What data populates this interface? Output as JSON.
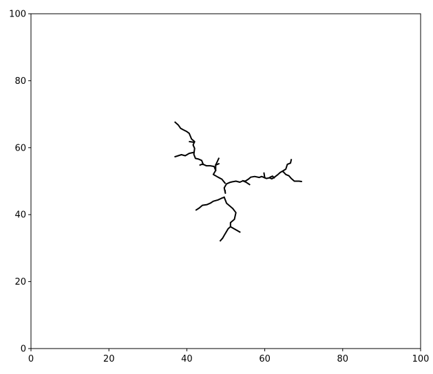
{
  "chart_data": {
    "type": "line",
    "title": "",
    "xlabel": "",
    "ylabel": "",
    "xlim": [
      0,
      100
    ],
    "ylim": [
      0,
      100
    ],
    "x_ticks": [
      0,
      20,
      40,
      60,
      80,
      100
    ],
    "y_ticks": [
      0,
      20,
      40,
      60,
      80,
      100
    ],
    "x_tick_labels": [
      "0",
      "20",
      "40",
      "60",
      "80",
      "100"
    ],
    "y_tick_labels": [
      "0",
      "20",
      "40",
      "60",
      "80",
      "100"
    ],
    "grid": false,
    "line_color": "#000000",
    "series": [
      {
        "x": [
          49.8,
          49.9,
          49.6,
          50.2,
          51.0,
          51.6,
          52.6,
          53.6,
          54.4,
          55.0,
          55.8,
          56.4,
          57.4,
          58.6,
          59.2,
          59.8,
          60.4,
          61.2,
          61.8,
          62.4,
          63.2,
          64.0,
          64.6,
          65.4,
          66.2,
          66.8,
          67.6,
          68.8,
          69.4
        ],
        "y": [
          47.2,
          46.4,
          48.0,
          49.2,
          49.6,
          49.8,
          50.0,
          49.7,
          50.1,
          50.0,
          50.6,
          51.2,
          51.4,
          51.1,
          51.4,
          51.1,
          50.8,
          51.0,
          50.7,
          51.1,
          51.8,
          52.6,
          53.0,
          52.0,
          51.6,
          50.8,
          50.0,
          50.0,
          49.9
        ]
      },
      {
        "x": [
          54.4,
          55.3,
          56.1
        ],
        "y": [
          50.1,
          49.6,
          49.0
        ]
      },
      {
        "x": [
          60.0,
          59.8
        ],
        "y": [
          51.0,
          52.4
        ]
      },
      {
        "x": [
          61.4,
          62.0,
          62.4
        ],
        "y": [
          51.2,
          51.5,
          51.0
        ]
      },
      {
        "x": [
          64.6,
          65.4,
          65.8,
          66.6,
          66.8
        ],
        "y": [
          53.0,
          53.6,
          55.0,
          55.4,
          56.4
        ]
      },
      {
        "x": [
          49.8,
          49.0,
          48.0,
          47.4,
          46.8,
          47.4,
          47.0,
          46.0,
          45.0,
          44.2,
          43.8,
          43.0,
          42.2,
          41.8,
          42.0,
          41.6,
          42.0,
          41.2,
          40.6,
          40.0,
          39.0,
          38.4,
          37.8,
          37.0
        ],
        "y": [
          49.4,
          50.6,
          51.2,
          51.6,
          52.0,
          53.2,
          54.4,
          54.6,
          54.6,
          55.0,
          56.2,
          56.6,
          56.8,
          58.0,
          59.8,
          60.8,
          61.8,
          62.6,
          64.3,
          64.8,
          65.4,
          65.8,
          66.8,
          67.6
        ]
      },
      {
        "x": [
          47.4,
          47.4,
          48.2
        ],
        "y": [
          53.2,
          54.8,
          56.8
        ]
      },
      {
        "x": [
          47.4,
          48.2
        ],
        "y": [
          54.8,
          55.2
        ]
      },
      {
        "x": [
          44.2,
          43.8,
          43.4
        ],
        "y": [
          55.0,
          55.0,
          54.8
        ]
      },
      {
        "x": [
          41.8,
          40.6,
          39.6,
          38.6,
          37.8,
          37.0
        ],
        "y": [
          58.6,
          58.3,
          57.6,
          57.9,
          57.6,
          57.3
        ]
      },
      {
        "x": [
          41.9,
          40.7
        ],
        "y": [
          61.6,
          61.8
        ]
      },
      {
        "x": [
          49.6,
          49.1,
          48.0,
          46.8,
          46.0,
          45.2,
          44.0,
          43.2,
          42.4
        ],
        "y": [
          45.2,
          45.0,
          44.4,
          44.0,
          43.4,
          43.0,
          42.8,
          42.0,
          41.4
        ]
      },
      {
        "x": [
          49.6,
          50.0,
          50.2,
          51.0,
          51.8,
          52.6,
          52.4,
          52.2,
          51.2,
          51.2,
          50.6,
          50.0,
          49.6,
          49.2,
          48.6
        ],
        "y": [
          45.2,
          44.0,
          43.4,
          42.6,
          41.8,
          40.6,
          39.6,
          38.6,
          37.6,
          36.4,
          35.8,
          34.6,
          33.8,
          33.0,
          32.2
        ]
      },
      {
        "x": [
          51.2,
          52.4,
          53.6
        ],
        "y": [
          36.4,
          35.6,
          34.8
        ]
      }
    ]
  }
}
